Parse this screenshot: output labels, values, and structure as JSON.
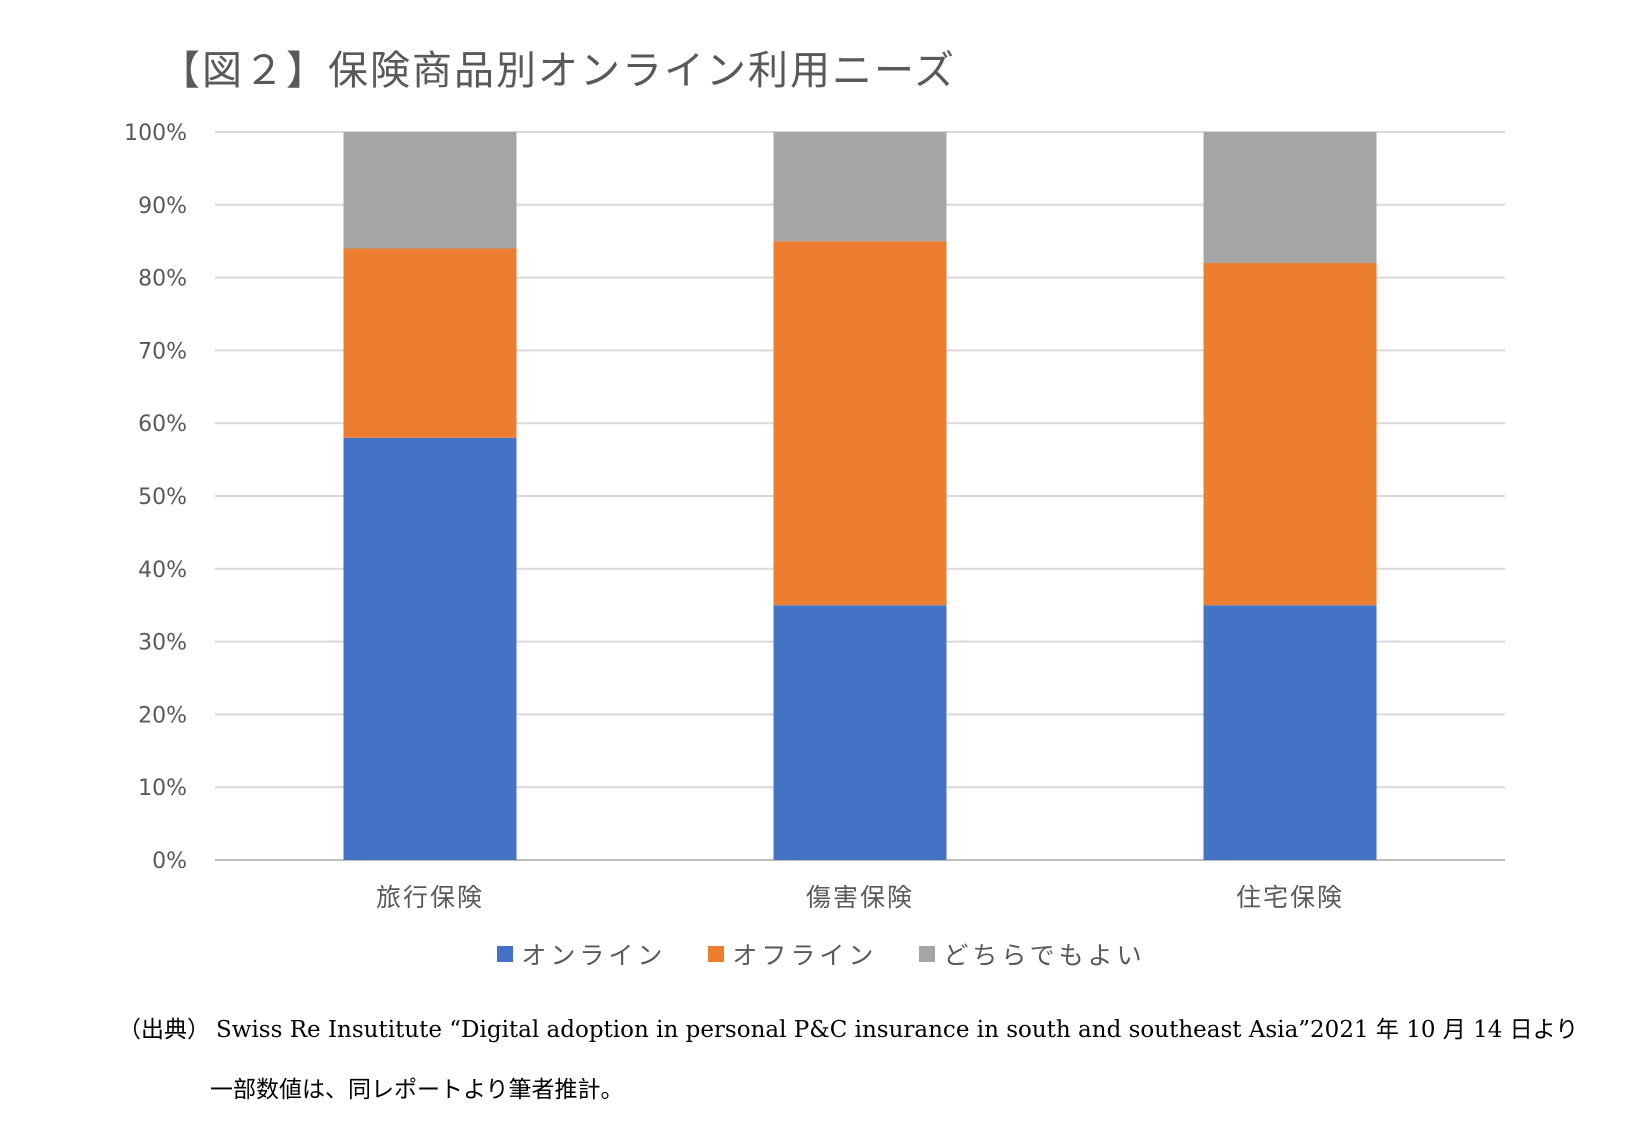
{
  "title": "【図２】保険商品別オンライン利用ニーズ",
  "chart_data": {
    "type": "bar",
    "stacked": true,
    "percent": true,
    "categories": [
      "旅行保険",
      "傷害保険",
      "住宅保険"
    ],
    "series": [
      {
        "name": "オンライン",
        "values": [
          58,
          35,
          35
        ],
        "color": "#4472C4"
      },
      {
        "name": "オフライン",
        "values": [
          26,
          50,
          47
        ],
        "color": "#ED7D31"
      },
      {
        "name": "どちらでもよい",
        "values": [
          16,
          15,
          18
        ],
        "color": "#A5A5A5"
      }
    ],
    "ylim": [
      0,
      100
    ],
    "yticks": [
      "0%",
      "10%",
      "20%",
      "30%",
      "40%",
      "50%",
      "60%",
      "70%",
      "80%",
      "90%",
      "100%"
    ],
    "grid": true,
    "legend": "bottom"
  },
  "source": {
    "label": "（出典）",
    "text": "Swiss Re Insutitute “Digital adoption in personal P&C insurance in south and southeast Asia”2021 年 10 月 14 日より"
  },
  "note": "一部数値は、同レポートより筆者推計。"
}
